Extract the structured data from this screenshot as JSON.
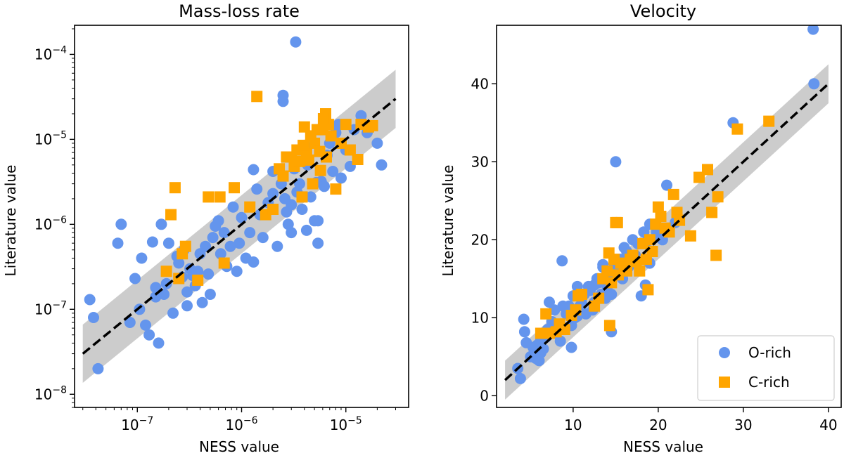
{
  "chart_data": [
    {
      "type": "scatter",
      "title": "Mass-loss rate",
      "xlabel": "NESS value",
      "ylabel": "Literature value",
      "xscale": "log",
      "yscale": "log",
      "xlim": [
        2.5e-08,
        4e-05
      ],
      "ylim": [
        7e-09,
        0.00022
      ],
      "xticks": [
        {
          "v": 1e-07,
          "exp": "−7"
        },
        {
          "v": 1e-06,
          "exp": "−6"
        },
        {
          "v": 1e-05,
          "exp": "−5"
        }
      ],
      "yticks": [
        {
          "v": 1e-08,
          "exp": "−8"
        },
        {
          "v": 1e-07,
          "exp": "−7"
        },
        {
          "v": 1e-06,
          "exp": "−6"
        },
        {
          "v": 1e-05,
          "exp": "−5"
        },
        {
          "v": 0.0001,
          "exp": "−4"
        }
      ],
      "tick_base": "10",
      "one_to_one": [
        3e-08,
        3e-05
      ],
      "band_factor": 2.2,
      "series": [
        {
          "name": "O-rich",
          "marker": "circle",
          "color": "#6495ED",
          "x": [
            3.5e-08,
            3.8e-08,
            4.2e-08,
            6.5e-08,
            7e-08,
            8.5e-08,
            9.5e-08,
            1.05e-07,
            1.1e-07,
            1.2e-07,
            1.3e-07,
            1.4e-07,
            1.5e-07,
            1.6e-07,
            1.7e-07,
            1.8e-07,
            1.9e-07,
            2e-07,
            2.2e-07,
            2.4e-07,
            2.5e-07,
            2.7e-07,
            2.8e-07,
            3e-07,
            3.2e-07,
            3.4e-07,
            3.6e-07,
            3.8e-07,
            4e-07,
            4.2e-07,
            4.5e-07,
            4.8e-07,
            5e-07,
            5.3e-07,
            5.6e-07,
            6e-07,
            6.3e-07,
            6.8e-07,
            7.2e-07,
            7.8e-07,
            8.3e-07,
            9e-07,
            9.5e-07,
            1e-06,
            1.1e-06,
            1.2e-06,
            1.3e-06,
            1.4e-06,
            1.5e-06,
            1.6e-06,
            1.8e-06,
            2e-06,
            2.2e-06,
            2.4e-06,
            2.6e-06,
            2.8e-06,
            3e-06,
            3.2e-06,
            3.4e-06,
            3.6e-06,
            3.8e-06,
            4e-06,
            4.3e-06,
            4.6e-06,
            5e-06,
            5.4e-06,
            5.8e-06,
            6.2e-06,
            6.6e-06,
            7e-06,
            7.5e-06,
            8e-06,
            8.5e-06,
            9e-06,
            1e-05,
            1.1e-05,
            1.2e-05,
            1.4e-05,
            1.6e-05,
            2e-05,
            2.2e-05,
            2.5e-06,
            2.5e-06,
            3.3e-06,
            1.3e-06,
            3e-06,
            2e-06,
            2.7e-06,
            4.2e-06,
            5.2e-06,
            5.4e-06,
            1.5e-07,
            3e-07
          ],
          "y": [
            1.3e-07,
            8e-08,
            2e-08,
            6e-07,
            1e-06,
            7e-08,
            2.3e-07,
            1e-07,
            4e-07,
            6.5e-08,
            5e-08,
            6.2e-07,
            1.8e-07,
            4e-08,
            1e-06,
            1.5e-07,
            2e-07,
            6e-07,
            9e-08,
            4.2e-07,
            3.5e-07,
            2.4e-07,
            5e-07,
            1.1e-07,
            3e-07,
            2.5e-07,
            1.9e-07,
            2.8e-07,
            4.5e-07,
            1.2e-07,
            5.5e-07,
            2.6e-07,
            1.5e-07,
            7e-07,
            9.5e-07,
            1.1e-06,
            4.5e-07,
            8e-07,
            3.2e-07,
            5.5e-07,
            1.6e-06,
            2.8e-07,
            6e-07,
            1.2e-06,
            4e-07,
            8e-07,
            3.6e-07,
            2.6e-06,
            1.3e-06,
            7e-07,
            1.8e-06,
            2.3e-06,
            5.5e-07,
            3e-06,
            2e-06,
            1e-06,
            1.7e-06,
            4.5e-06,
            2.4e-06,
            3e-06,
            1.5e-06,
            8.5e-06,
            5e-06,
            2.1e-06,
            1.1e-06,
            6e-07,
            3.2e-06,
            2.8e-06,
            6.5e-06,
            9e-06,
            4.2e-06,
            1.2e-05,
            1.5e-05,
            3.5e-06,
            7.5e-06,
            4.8e-06,
            1.3e-05,
            1.9e-05,
            1.2e-05,
            9e-06,
            5e-06,
            3.3e-05,
            2.8e-05,
            0.00014,
            4.4e-06,
            8e-07,
            4.2e-06,
            1.4e-06,
            8.5e-07,
            3.1e-06,
            1.1e-06,
            1.4e-07,
            1.6e-07
          ]
        },
        {
          "name": "C-rich",
          "marker": "square",
          "color": "#FFA500",
          "x": [
            1.9e-07,
            2.1e-07,
            2.3e-07,
            2.5e-07,
            2.7e-07,
            2.9e-07,
            3.8e-07,
            4.8e-07,
            6.2e-07,
            6.8e-07,
            8.5e-07,
            1.2e-06,
            1.7e-06,
            2e-06,
            2.3e-06,
            2.7e-06,
            3e-06,
            3.2e-06,
            3.4e-06,
            3.6e-06,
            3.8e-06,
            4e-06,
            4.2e-06,
            4.4e-06,
            4.6e-06,
            4.8e-06,
            5e-06,
            5.3e-06,
            5.6e-06,
            6e-06,
            6.4e-06,
            6.8e-06,
            7.2e-06,
            8e-06,
            9e-06,
            1e-05,
            1.1e-05,
            1.3e-05,
            1.4e-06,
            2.5e-06,
            3.9e-06,
            5.7e-06,
            6.1e-06,
            1.65e-05,
            1.8e-05,
            1.4e-05,
            6.5e-06
          ],
          "y": [
            2.8e-07,
            1.3e-06,
            2.7e-06,
            2.3e-07,
            4.5e-07,
            5.5e-07,
            2.2e-07,
            2.1e-06,
            2.1e-06,
            3.5e-07,
            2.7e-06,
            1.6e-06,
            1.3e-06,
            1.5e-06,
            4.5e-06,
            6.2e-06,
            6.2e-06,
            4.8e-06,
            7.5e-06,
            5.5e-06,
            2.1e-06,
            1.4e-05,
            6.8e-06,
            5.7e-06,
            1.1e-05,
            3e-06,
            9e-06,
            1.3e-05,
            7.2e-06,
            1.3e-05,
            2e-05,
            1.5e-05,
            1.1e-05,
            2.6e-06,
            9e-06,
            1.5e-05,
            7.5e-06,
            5.8e-06,
            3.2e-05,
            3.7e-06,
            8.5e-06,
            4.3e-06,
            1.75e-05,
            1.4e-05,
            1.45e-05,
            1.5e-05,
            6.2e-06
          ]
        }
      ]
    },
    {
      "type": "scatter",
      "title": "Velocity",
      "xlabel": "NESS value",
      "ylabel": "Literature value",
      "xscale": "linear",
      "yscale": "linear",
      "xlim": [
        1,
        41.5
      ],
      "ylim": [
        -1.5,
        47.5
      ],
      "xticks": [
        10,
        20,
        30,
        40
      ],
      "yticks": [
        0,
        10,
        20,
        30,
        40
      ],
      "one_to_one": [
        2,
        40
      ],
      "band_halfwidth": 2.5,
      "legend": {
        "loc": "lower-right",
        "entries": [
          "O-rich",
          "C-rich"
        ]
      },
      "series": [
        {
          "name": "O-rich",
          "marker": "circle",
          "color": "#6495ED",
          "x": [
            3.5,
            3.8,
            4.2,
            4.5,
            5,
            5.3,
            5.6,
            5.8,
            6,
            6.2,
            6.5,
            6.8,
            7,
            7.2,
            7.5,
            7.8,
            8,
            8.3,
            8.5,
            8.8,
            9,
            9.2,
            9.5,
            9.8,
            10,
            10.2,
            10.5,
            10.8,
            11,
            11.3,
            11.5,
            11.8,
            12,
            12.3,
            12.5,
            12.8,
            13,
            13.3,
            13.5,
            13.8,
            14,
            14.2,
            14.5,
            14.8,
            15,
            15.2,
            15.5,
            15.8,
            16,
            16.3,
            16.6,
            17,
            17.3,
            17.6,
            18,
            18.3,
            18.7,
            19,
            19.3,
            19.8,
            20,
            20.5,
            21,
            22,
            15.1,
            14.5,
            8.7,
            28.8,
            38.2,
            38.3,
            4.3,
            18.5,
            12.5,
            11,
            10.5,
            9.8,
            7.5,
            6.2,
            13.5,
            16.5,
            19
          ],
          "y": [
            3.5,
            2.2,
            9.8,
            6.8,
            5,
            6.2,
            4.8,
            6.5,
            4.5,
            5.5,
            6,
            7.5,
            8.5,
            12,
            9.5,
            11,
            8,
            9,
            7,
            11.5,
            8.5,
            10.5,
            11.5,
            9,
            12.8,
            10,
            14,
            11.5,
            12.5,
            13,
            10.5,
            14,
            13.5,
            11,
            12,
            15,
            14.5,
            13,
            16.8,
            12.5,
            14,
            15.5,
            13,
            17,
            30,
            16,
            17.5,
            15,
            19,
            18.5,
            17,
            20,
            18,
            19.5,
            12.8,
            21,
            19.8,
            22,
            18.5,
            21,
            20.5,
            20,
            27,
            22.2,
            22.2,
            8.2,
            17.3,
            35,
            47,
            40,
            8.2,
            14.2,
            14.2,
            11.8,
            10.2,
            6.2,
            8.8,
            7.2,
            16.5,
            16.5,
            17
          ]
        },
        {
          "name": "C-rich",
          "marker": "square",
          "color": "#FFA500",
          "x": [
            6.2,
            6.8,
            7.2,
            8,
            8.4,
            9,
            9.8,
            10.3,
            10.6,
            11,
            12.5,
            13,
            13.5,
            14,
            14.2,
            14.5,
            14.8,
            15,
            15.3,
            15.6,
            16,
            16.3,
            16.7,
            17,
            17.4,
            17.8,
            18.2,
            18.6,
            19,
            19.3,
            19.7,
            20,
            20.3,
            20.8,
            21.3,
            21.8,
            22.2,
            22.5,
            23.8,
            24.8,
            25.8,
            26.3,
            26.8,
            27,
            29.3,
            33,
            15.2,
            18.8,
            14.3
          ],
          "y": [
            8,
            10.5,
            8,
            8.2,
            9.2,
            8.5,
            10.3,
            11,
            12.8,
            13,
            11.5,
            12.5,
            15,
            16,
            18.3,
            14.5,
            17.5,
            22.2,
            15.5,
            17,
            16.5,
            16,
            17.5,
            18,
            17.2,
            16,
            19.5,
            17.5,
            20,
            18.5,
            22,
            24.2,
            23,
            21.5,
            21,
            25.8,
            23.5,
            22.5,
            20.5,
            28,
            29,
            23.5,
            18,
            25.5,
            34.2,
            35.2,
            22.2,
            13.6,
            9
          ]
        }
      ]
    }
  ]
}
